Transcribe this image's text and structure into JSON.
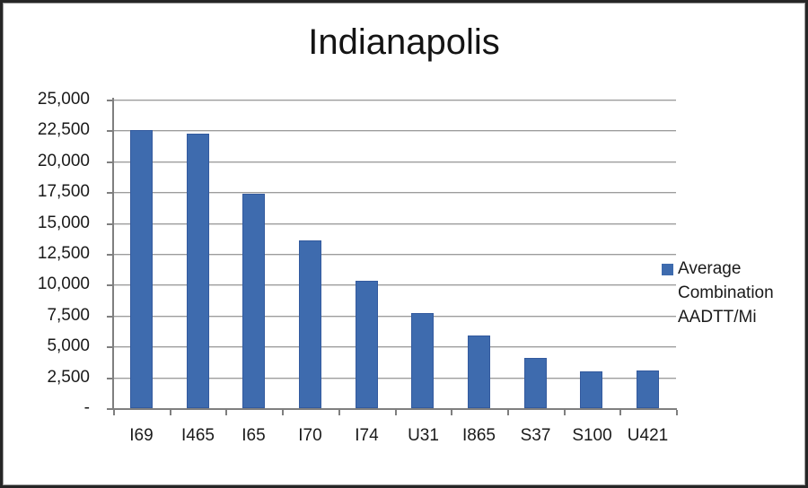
{
  "frame": {
    "background": "#ffffff",
    "border_color": "#262626"
  },
  "chart_data": {
    "type": "bar",
    "title": "Indianapolis",
    "categories": [
      "I69",
      "I465",
      "I65",
      "I70",
      "I74",
      "U31",
      "I865",
      "S37",
      "S100",
      "U421"
    ],
    "values": [
      22500,
      22250,
      17350,
      13600,
      10350,
      7700,
      5900,
      4050,
      3000,
      3050
    ],
    "series": [
      {
        "name": "Average Combination AADTT/Mi",
        "values": [
          22500,
          22250,
          17350,
          13600,
          10350,
          7700,
          5900,
          4050,
          3000,
          3050
        ]
      }
    ],
    "xlabel": "",
    "ylabel": "",
    "ylim": [
      0,
      25000
    ],
    "ytick_step": 2500,
    "ytick_labels_top_to_bottom": [
      "25,000",
      "22,500",
      "20,000",
      "17,500",
      "15,000",
      "12,500",
      "10,000",
      "7,500",
      "5,000",
      "2,500",
      "-"
    ],
    "grid": "horizontal",
    "legend": {
      "position": "right",
      "lines": [
        "Average",
        "Combination",
        "AADTT/Mi"
      ],
      "marker_color": "#3e6bae"
    },
    "bar_color": "#3e6bae",
    "bar_border_color": "#335a9e",
    "gridline_color": "#9c9c9c",
    "axis_color": "#7f7f7f",
    "text_color": "#1a1a1a"
  }
}
